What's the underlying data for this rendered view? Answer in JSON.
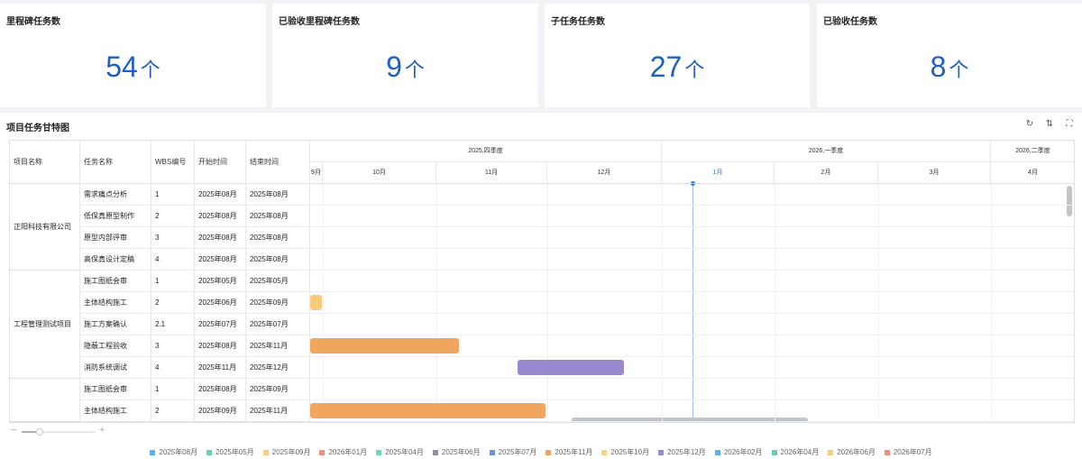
{
  "stats": [
    {
      "title": "里程碑任务数",
      "value": "54",
      "unit": "个"
    },
    {
      "title": "已验收里程碑任务数",
      "value": "9",
      "unit": "个"
    },
    {
      "title": "子任务任务数",
      "value": "27",
      "unit": "个"
    },
    {
      "title": "已验收任务数",
      "value": "8",
      "unit": "个"
    }
  ],
  "gantt": {
    "title": "项目任务甘特图",
    "tools": [
      {
        "name": "refresh-icon",
        "glyph": "↻"
      },
      {
        "name": "sort-icon",
        "glyph": "⇅"
      },
      {
        "name": "fullscreen-icon",
        "glyph": "⛶"
      }
    ],
    "columns": [
      "项目名称",
      "任务名称",
      "WBS编号",
      "开始时间",
      "结束时间"
    ],
    "quarters": [
      "2025,四季度",
      "2026,一季度",
      "2026,二季度"
    ],
    "months": [
      "9月",
      "10月",
      "11月",
      "12月",
      "1月",
      "2月",
      "3月",
      "4月"
    ],
    "current_month": "1月",
    "projects": [
      {
        "name": "正阳科技有限公司",
        "rows": [
          {
            "task": "需求痛点分析",
            "wbs": "1",
            "start": "2025年08月",
            "end": "2025年08月"
          },
          {
            "task": "低保真原型制作",
            "wbs": "2",
            "start": "2025年08月",
            "end": "2025年08月"
          },
          {
            "task": "原型内部评审",
            "wbs": "3",
            "start": "2025年08月",
            "end": "2025年08月"
          },
          {
            "task": "高保真设计定稿",
            "wbs": "4",
            "start": "2025年08月",
            "end": "2025年08月"
          }
        ]
      },
      {
        "name": "工程管理测试项目",
        "rows": [
          {
            "task": "施工图纸会审",
            "wbs": "1",
            "start": "2025年05月",
            "end": "2025年05月"
          },
          {
            "task": "主体结构施工",
            "wbs": "2",
            "start": "2025年06月",
            "end": "2025年09月"
          },
          {
            "task": "施工方案确认",
            "wbs": "2.1",
            "start": "2025年07月",
            "end": "2025年07月"
          },
          {
            "task": "隐蔽工程验收",
            "wbs": "3",
            "start": "2025年08月",
            "end": "2025年11月"
          },
          {
            "task": "消防系统调试",
            "wbs": "4",
            "start": "2025年11月",
            "end": "2025年12月"
          }
        ]
      },
      {
        "name": "",
        "rows": [
          {
            "task": "施工图纸会审",
            "wbs": "1",
            "start": "2025年08月",
            "end": "2025年09月"
          },
          {
            "task": "主体结构施工",
            "wbs": "2",
            "start": "2025年09月",
            "end": "2025年11月"
          }
        ]
      }
    ],
    "bar_colors": {
      "orange": "#f0a65f",
      "light_orange": "#f7cb7f",
      "purple": "#9a89cf"
    },
    "legend": [
      {
        "label": "2025年08月",
        "color": "#5ab1ef"
      },
      {
        "label": "2025年05月",
        "color": "#6ed09b"
      },
      {
        "label": "2025年09月",
        "color": "#f7cb7f"
      },
      {
        "label": "2026年01月",
        "color": "#f08d7e"
      },
      {
        "label": "2025年04月",
        "color": "#6ed6c3"
      },
      {
        "label": "2025年06月",
        "color": "#8b8fa8"
      },
      {
        "label": "2025年07月",
        "color": "#6f8fd6"
      },
      {
        "label": "2025年11月",
        "color": "#f0a65f"
      },
      {
        "label": "2025年10月",
        "color": "#f7d47a"
      },
      {
        "label": "2025年12月",
        "color": "#9a89cf"
      },
      {
        "label": "2026年02月",
        "color": "#5ab1ef"
      },
      {
        "label": "2026年04月",
        "color": "#6ed09b"
      },
      {
        "label": "2026年06月",
        "color": "#f7cb7f"
      },
      {
        "label": "2026年07月",
        "color": "#f08d7e"
      }
    ]
  }
}
